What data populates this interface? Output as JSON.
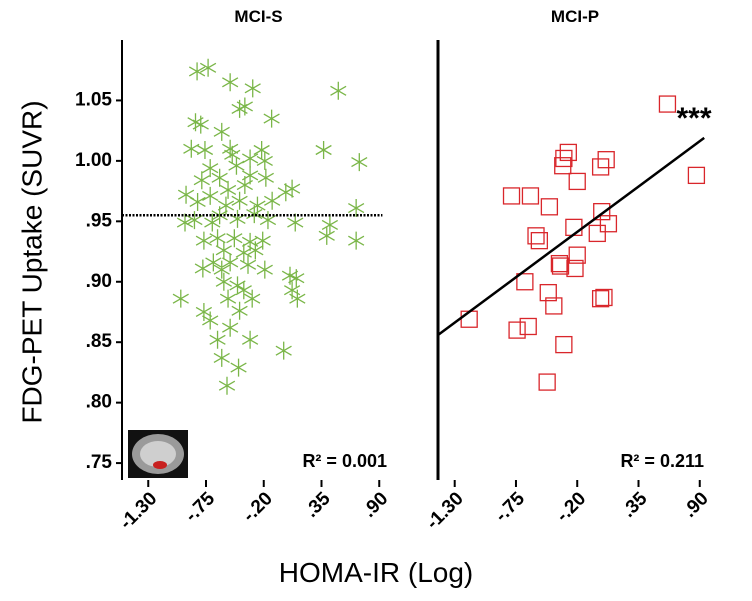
{
  "shared": {
    "ylabel": "FDG-PET Uptake (SUVR)",
    "xlabel": "HOMA-IR (Log)"
  },
  "chart_data": [
    {
      "type": "scatter",
      "title": "MCI-S",
      "marker": "star",
      "series": [
        {
          "color": "#7ab648",
          "x": [
            -0.73,
            -0.835,
            -0.52,
            -0.305,
            0.51,
            -0.43,
            -0.38,
            -0.85,
            -0.8,
            -0.6,
            -0.125,
            0.37,
            0.71,
            -0.89,
            -0.76,
            -0.52,
            -0.22,
            -0.19,
            -0.5,
            -0.33,
            -0.46,
            -0.71,
            -0.79,
            -0.62,
            -0.33,
            -0.18,
            -0.38,
            -0.54,
            -0.71,
            0.01,
            0.07,
            -0.94,
            -0.83,
            -0.56,
            -0.43,
            -0.26,
            -0.12,
            -0.62,
            -0.45,
            -0.29,
            -0.16,
            -0.95,
            -0.86,
            -0.69,
            0.43,
            0.1,
            0.68,
            0.4,
            0.68,
            -0.77,
            -0.64,
            -0.48,
            -0.33,
            -0.21,
            -0.58,
            -0.39,
            -0.28,
            -0.68,
            -0.52,
            -0.35,
            -0.78,
            -0.6,
            -0.19,
            0.05,
            0.11,
            -0.58,
            -0.45,
            -0.39,
            0.07,
            0.12,
            -0.99,
            -0.54,
            -0.31,
            -0.77,
            -0.43,
            -0.71,
            -0.52,
            -0.64,
            -0.33,
            -0.01,
            -0.6,
            -0.44,
            -0.55
          ],
          "values": [
            1.077,
            1.074,
            1.065,
            1.06,
            1.058,
            1.043,
            1.045,
            1.032,
            1.03,
            1.024,
            1.035,
            1.009,
            0.999,
            1.01,
            1.009,
            1.01,
            1.009,
            1.0,
            1.005,
            1.002,
            0.996,
            0.994,
            0.984,
            0.986,
            0.988,
            0.986,
            0.98,
            0.976,
            0.971,
            0.974,
            0.977,
            0.972,
            0.966,
            0.963,
            0.967,
            0.963,
            0.967,
            0.955,
            0.952,
            0.956,
            0.951,
            0.949,
            0.951,
            0.949,
            0.947,
            0.949,
            0.961,
            0.938,
            0.934,
            0.934,
            0.936,
            0.936,
            0.933,
            0.934,
            0.926,
            0.924,
            0.926,
            0.916,
            0.916,
            0.914,
            0.911,
            0.91,
            0.91,
            0.905,
            0.903,
            0.9,
            0.897,
            0.893,
            0.893,
            0.886,
            0.886,
            0.886,
            0.886,
            0.875,
            0.876,
            0.868,
            0.862,
            0.852,
            0.852,
            0.843,
            0.837,
            0.829,
            0.814
          ]
        }
      ],
      "trend": {
        "x": [
          -1.55,
          0.93
        ],
        "values": [
          0.955,
          0.955
        ],
        "style": "dotted"
      },
      "annotations": [
        "R² = 0.001"
      ],
      "xlim": [
        -1.55,
        1.05
      ],
      "ylim": [
        0.736,
        1.1
      ],
      "xticks": [
        {
          "value": -1.3,
          "label": "-1.30"
        },
        {
          "value": -0.75,
          "label": "-.75"
        },
        {
          "value": -0.2,
          "label": "-.20"
        },
        {
          "value": 0.35,
          "label": ".35"
        },
        {
          "value": 0.9,
          "label": ".90"
        }
      ],
      "yticks": [
        {
          "value": 0.75,
          "label": ".75"
        },
        {
          "value": 0.8,
          "label": ".80"
        },
        {
          "value": 0.85,
          "label": ".85"
        },
        {
          "value": 0.9,
          "label": ".90"
        },
        {
          "value": 0.95,
          "label": ".95"
        },
        {
          "value": 1.0,
          "label": "1.00"
        },
        {
          "value": 1.05,
          "label": "1.05"
        }
      ]
    },
    {
      "type": "scatter",
      "title": "MCI-P",
      "marker": "square",
      "series": [
        {
          "color": "#d9262b",
          "x": [
            0.61,
            0.87,
            0.06,
            -0.28,
            -0.32,
            -0.33,
            0.01,
            -0.2,
            -0.79,
            -0.62,
            -0.45,
            0.02,
            -0.23,
            0.08,
            -0.02,
            -0.57,
            -0.54,
            -0.2,
            -0.36,
            -0.22,
            -0.35,
            -0.67,
            -0.46,
            -0.41,
            0.01,
            0.04,
            -1.17,
            -0.64,
            -0.74,
            -0.32,
            -0.47
          ],
          "values": [
            1.047,
            0.988,
            1.001,
            1.007,
            1.002,
            0.996,
            0.995,
            0.983,
            0.971,
            0.971,
            0.962,
            0.958,
            0.945,
            0.948,
            0.94,
            0.938,
            0.934,
            0.922,
            0.915,
            0.911,
            0.913,
            0.9,
            0.891,
            0.88,
            0.886,
            0.887,
            0.869,
            0.863,
            0.86,
            0.848,
            0.817
          ]
        }
      ],
      "trend": {
        "x": [
          -1.45,
          0.94
        ],
        "values": [
          0.856,
          1.019
        ],
        "style": "solid"
      },
      "annotations": [
        "R² = 0.211",
        "***"
      ],
      "xlim": [
        -1.45,
        1.01
      ],
      "ylim": [
        0.736,
        1.1
      ],
      "xticks": [
        {
          "value": -1.3,
          "label": "-1.30"
        },
        {
          "value": -0.75,
          "label": "-.75"
        },
        {
          "value": -0.2,
          "label": "-.20"
        },
        {
          "value": 0.35,
          "label": ".35"
        },
        {
          "value": 0.9,
          "label": ".90"
        }
      ]
    }
  ]
}
